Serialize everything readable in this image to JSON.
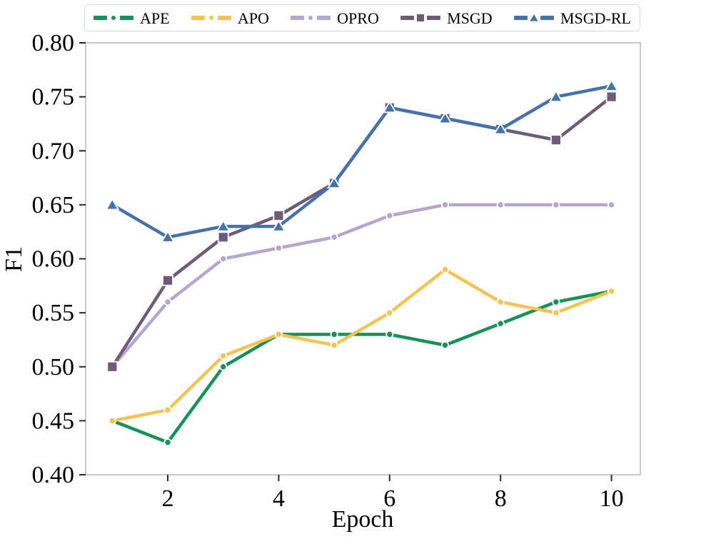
{
  "chart_data": {
    "type": "line",
    "title": "",
    "xlabel": "Epoch",
    "ylabel": "F1",
    "x": [
      1,
      2,
      3,
      4,
      5,
      6,
      7,
      8,
      9,
      10
    ],
    "xlim": [
      0.52,
      10.52
    ],
    "ylim": [
      0.4,
      0.8
    ],
    "xticks": [
      2,
      4,
      6,
      8,
      10
    ],
    "xtick_labels": [
      "2",
      "4",
      "6",
      "8",
      "10"
    ],
    "yticks": [
      0.4,
      0.45,
      0.5,
      0.55,
      0.6,
      0.65,
      0.7,
      0.75,
      0.8
    ],
    "ytick_labels": [
      "0.40",
      "0.45",
      "0.50",
      "0.55",
      "0.60",
      "0.65",
      "0.70",
      "0.75",
      "0.80"
    ],
    "grid": false,
    "legend_position": "top",
    "axis_box_color": "#c9c9c9",
    "tick_color": "#262626",
    "series": [
      {
        "name": "APE",
        "color": "#149258",
        "marker": "circle",
        "values": [
          0.45,
          0.43,
          0.5,
          0.53,
          0.53,
          0.53,
          0.52,
          0.54,
          0.56,
          0.57
        ]
      },
      {
        "name": "APO",
        "color": "#F6C350",
        "marker": "circle",
        "values": [
          0.45,
          0.46,
          0.51,
          0.53,
          0.52,
          0.55,
          0.59,
          0.56,
          0.55,
          0.57
        ]
      },
      {
        "name": "OPRO",
        "color": "#B4A6CE",
        "marker": "circle",
        "values": [
          0.5,
          0.56,
          0.6,
          0.61,
          0.62,
          0.64,
          0.65,
          0.65,
          0.65,
          0.65
        ]
      },
      {
        "name": "MSGD",
        "color": "#6E5B78",
        "marker": "square",
        "values": [
          0.5,
          0.58,
          0.62,
          0.64,
          0.67,
          0.74,
          0.73,
          0.72,
          0.71,
          0.75
        ]
      },
      {
        "name": "MSGD-RL",
        "color": "#4571AE",
        "marker": "triangle",
        "values": [
          0.65,
          0.62,
          0.63,
          0.63,
          0.67,
          0.74,
          0.73,
          0.72,
          0.75,
          0.76
        ]
      }
    ]
  }
}
